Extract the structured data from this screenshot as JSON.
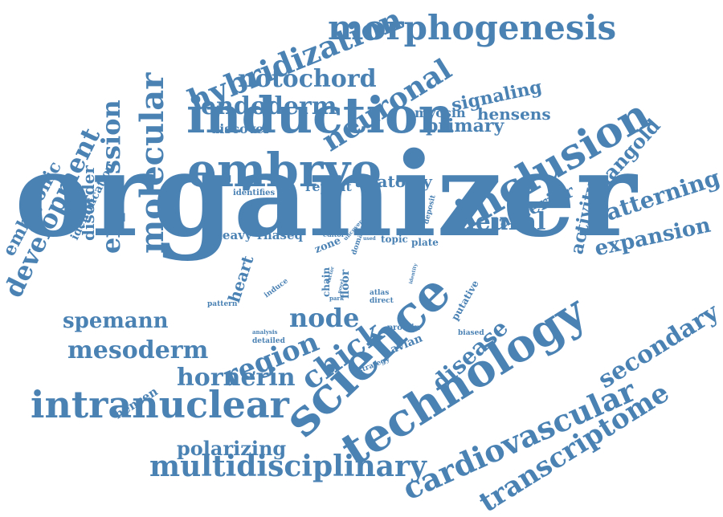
{
  "colors": {
    "word": "#4b82b4",
    "background": "#ffffff"
  },
  "words": [
    "organizer",
    "embryo",
    "induction",
    "science",
    "technology",
    "inclusion",
    "morphogenesis",
    "intranuclear",
    "multidisciplinary",
    "molecular",
    "hybridization",
    "expression",
    "cardiovascular",
    "transcriptome",
    "development",
    "notochord",
    "endoderm",
    "neuronal",
    "neural",
    "chick",
    "hornerin",
    "mesoderm",
    "region",
    "spemann",
    "secondary",
    "patterning",
    "expansion",
    "mangold",
    "disease",
    "polarizing",
    "node",
    "anterior",
    "signaling",
    "primary",
    "hensens",
    "myosin",
    "anatomy",
    "embryonic",
    "disorder",
    "activity",
    "heart",
    "discover",
    "identification",
    "repeat",
    "heavy",
    "rnaseq",
    "zone",
    "topic",
    "plate",
    "hensen",
    "avian",
    "strategy",
    "identifies",
    "putative",
    "editor",
    "uncover",
    "domain",
    "deposit",
    "chain",
    "floor",
    "park",
    "atlas",
    "direct",
    "induce",
    "pattern",
    "protein",
    "biased",
    "analysis",
    "detailed",
    "identity",
    "used",
    "factor",
    "novel"
  ]
}
